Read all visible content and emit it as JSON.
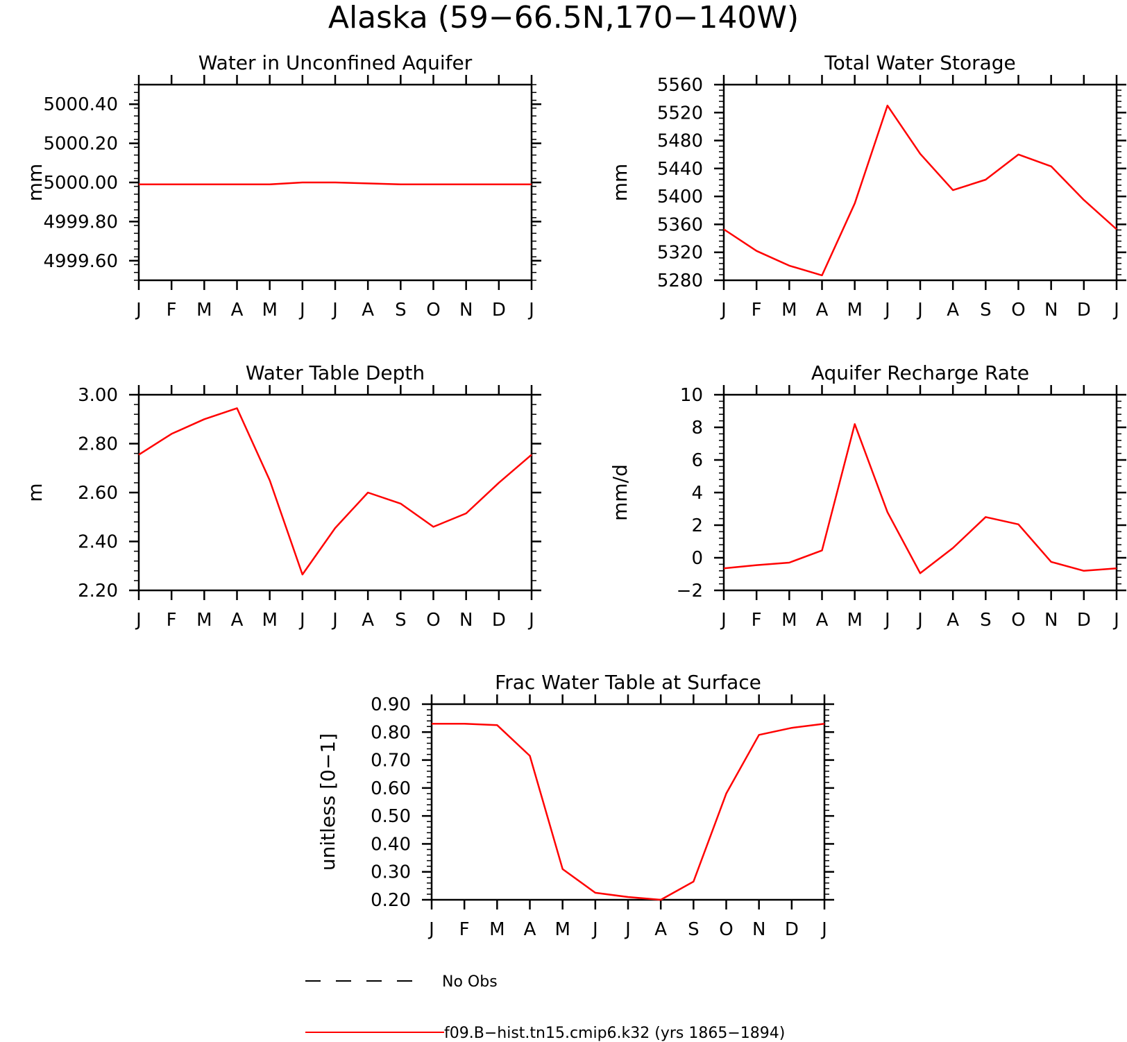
{
  "figure_title": "Alaska (59−66.5N,170−140W)",
  "months": [
    "J",
    "F",
    "M",
    "A",
    "M",
    "J",
    "J",
    "A",
    "S",
    "O",
    "N",
    "D",
    "J"
  ],
  "colors": {
    "model": "#ff0000",
    "obs": "#000000"
  },
  "legend": [
    {
      "label": "No Obs",
      "style": "dashed",
      "color": "#000000"
    },
    {
      "label": "f09.B−hist.tn15.cmip6.k32 (yrs 1865−1894)",
      "style": "solid",
      "color": "#ff0000"
    }
  ],
  "chart_data": [
    {
      "type": "line",
      "title": "Water in Unconfined Aquifer",
      "ylabel": "mm",
      "ylim": [
        4999.5,
        5000.5
      ],
      "yticks": [
        "5000.40",
        "5000.20",
        "5000.00",
        "4999.80",
        "4999.60"
      ],
      "ytick_values": [
        5000.4,
        5000.2,
        5000.0,
        4999.8,
        4999.6
      ],
      "x": [
        "J",
        "F",
        "M",
        "A",
        "M",
        "J",
        "J",
        "A",
        "S",
        "O",
        "N",
        "D",
        "J"
      ],
      "series": [
        {
          "values": [
            4999.99,
            4999.99,
            4999.99,
            4999.99,
            4999.99,
            5000.0,
            5000.0,
            4999.995,
            4999.99,
            4999.99,
            4999.99,
            4999.99,
            4999.99
          ]
        }
      ]
    },
    {
      "type": "line",
      "title": "Total Water Storage",
      "ylabel": "mm",
      "ylim": [
        5280,
        5560
      ],
      "yticks": [
        "5560",
        "5520",
        "5480",
        "5440",
        "5400",
        "5360",
        "5320",
        "5280"
      ],
      "ytick_values": [
        5560,
        5520,
        5480,
        5440,
        5400,
        5360,
        5320,
        5280
      ],
      "x": [
        "J",
        "F",
        "M",
        "A",
        "M",
        "J",
        "J",
        "A",
        "S",
        "O",
        "N",
        "D",
        "J"
      ],
      "series": [
        {
          "values": [
            5353,
            5322,
            5301,
            5287,
            5390,
            5530,
            5461,
            5409,
            5424,
            5460,
            5443,
            5395,
            5353
          ]
        }
      ]
    },
    {
      "type": "line",
      "title": "Water Table Depth",
      "ylabel": "m",
      "ylim": [
        2.2,
        3.0
      ],
      "yticks": [
        "3.00",
        "2.80",
        "2.60",
        "2.40",
        "2.20"
      ],
      "ytick_values": [
        3.0,
        2.8,
        2.6,
        2.4,
        2.2
      ],
      "x": [
        "J",
        "F",
        "M",
        "A",
        "M",
        "J",
        "J",
        "A",
        "S",
        "O",
        "N",
        "D",
        "J"
      ],
      "series": [
        {
          "values": [
            2.755,
            2.84,
            2.9,
            2.945,
            2.65,
            2.265,
            2.455,
            2.6,
            2.555,
            2.46,
            2.515,
            2.64,
            2.755
          ]
        }
      ]
    },
    {
      "type": "line",
      "title": "Aquifer Recharge Rate",
      "ylabel": "mm/d",
      "ylim": [
        -2,
        10
      ],
      "yticks": [
        "10",
        "8",
        "6",
        "4",
        "2",
        "0",
        "−2"
      ],
      "ytick_values": [
        10,
        8,
        6,
        4,
        2,
        0,
        -2
      ],
      "x": [
        "J",
        "F",
        "M",
        "A",
        "M",
        "J",
        "J",
        "A",
        "S",
        "O",
        "N",
        "D",
        "J"
      ],
      "series": [
        {
          "values": [
            -0.65,
            -0.45,
            -0.3,
            0.45,
            8.2,
            2.8,
            -0.95,
            0.6,
            2.5,
            2.05,
            -0.25,
            -0.8,
            -0.65
          ]
        }
      ]
    },
    {
      "type": "line",
      "title": "Frac Water Table at Surface",
      "ylabel": "unitless [0−1]",
      "ylim": [
        0.2,
        0.9
      ],
      "yticks": [
        "0.90",
        "0.80",
        "0.70",
        "0.60",
        "0.50",
        "0.40",
        "0.30",
        "0.20"
      ],
      "ytick_values": [
        0.9,
        0.8,
        0.7,
        0.6,
        0.5,
        0.4,
        0.3,
        0.2
      ],
      "x": [
        "J",
        "F",
        "M",
        "A",
        "M",
        "J",
        "J",
        "A",
        "S",
        "O",
        "N",
        "D",
        "J"
      ],
      "series": [
        {
          "values": [
            0.83,
            0.83,
            0.825,
            0.715,
            0.31,
            0.225,
            0.21,
            0.2,
            0.265,
            0.58,
            0.79,
            0.815,
            0.83
          ]
        }
      ]
    }
  ]
}
